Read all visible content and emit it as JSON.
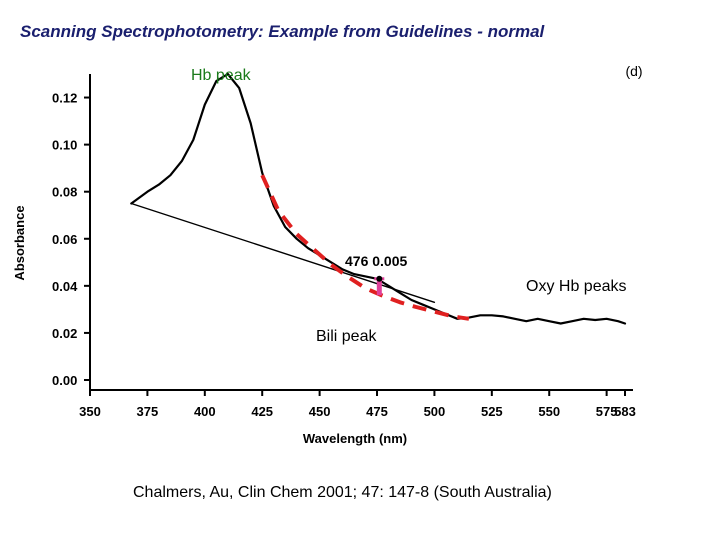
{
  "slide": {
    "title": "Scanning Spectrophotometry: Example from Guidelines - normal",
    "citation": "Chalmers, Au, Clin Chem 2001; 47: 147-8 (South Australia)"
  },
  "chart_data": {
    "type": "line",
    "panel_label": "(d)",
    "xlabel": "Wavelength (nm)",
    "ylabel": "Absorbance",
    "xlim": [
      350,
      583
    ],
    "ylim": [
      0.0,
      0.13
    ],
    "x_ticks": [
      "350",
      "375",
      "400",
      "425",
      "450",
      "475",
      "500",
      "525",
      "550",
      "575",
      "583"
    ],
    "y_ticks": [
      "0.00",
      "0.02",
      "0.04",
      "0.06",
      "0.08",
      "0.10",
      "0.12"
    ],
    "series": [
      {
        "key": "spectrum",
        "color": "#000000",
        "style": "solid",
        "x": [
          368,
          375,
          380,
          385,
          390,
          395,
          400,
          405,
          410,
          415,
          420,
          425,
          430,
          435,
          440,
          445,
          450,
          455,
          460,
          465,
          470,
          475,
          480,
          485,
          490,
          495,
          500,
          505,
          510,
          515,
          520,
          525,
          530,
          535,
          540,
          545,
          550,
          555,
          560,
          565,
          570,
          575,
          580,
          583
        ],
        "y": [
          0.075,
          0.08,
          0.083,
          0.087,
          0.093,
          0.102,
          0.117,
          0.127,
          0.13,
          0.124,
          0.109,
          0.088,
          0.074,
          0.065,
          0.06,
          0.056,
          0.053,
          0.05,
          0.047,
          0.045,
          0.044,
          0.043,
          0.04,
          0.037,
          0.034,
          0.032,
          0.03,
          0.028,
          0.026,
          0.0265,
          0.0275,
          0.0275,
          0.027,
          0.026,
          0.025,
          0.026,
          0.025,
          0.024,
          0.025,
          0.026,
          0.0255,
          0.026,
          0.025,
          0.024
        ]
      },
      {
        "key": "baseline",
        "color": "#000000",
        "style": "solid",
        "x": [
          368,
          500
        ],
        "y": [
          0.075,
          0.033
        ]
      },
      {
        "key": "hb-peak-extrapolation",
        "color": "#e02020",
        "style": "dashed",
        "x": [
          425,
          432,
          440,
          448,
          455,
          462,
          470,
          477,
          485,
          492,
          500,
          508,
          515
        ],
        "y": [
          0.087,
          0.072,
          0.062,
          0.055,
          0.049,
          0.044,
          0.039,
          0.036,
          0.033,
          0.031,
          0.029,
          0.027,
          0.026
        ]
      }
    ],
    "bili_marker": {
      "x": 476,
      "y_top": 0.043,
      "y_bottom": 0.036,
      "color": "#e0409a"
    },
    "annotations": [
      {
        "key": "hb",
        "text": "Hb peak",
        "color": "#1a7a1a"
      },
      {
        "key": "oxy",
        "text": "Oxy Hb peaks",
        "color": "#000000"
      },
      {
        "key": "bili",
        "text": "Bili peak",
        "color": "#000000"
      },
      {
        "key": "point",
        "text": "476 0.005",
        "color": "#000000"
      }
    ]
  }
}
